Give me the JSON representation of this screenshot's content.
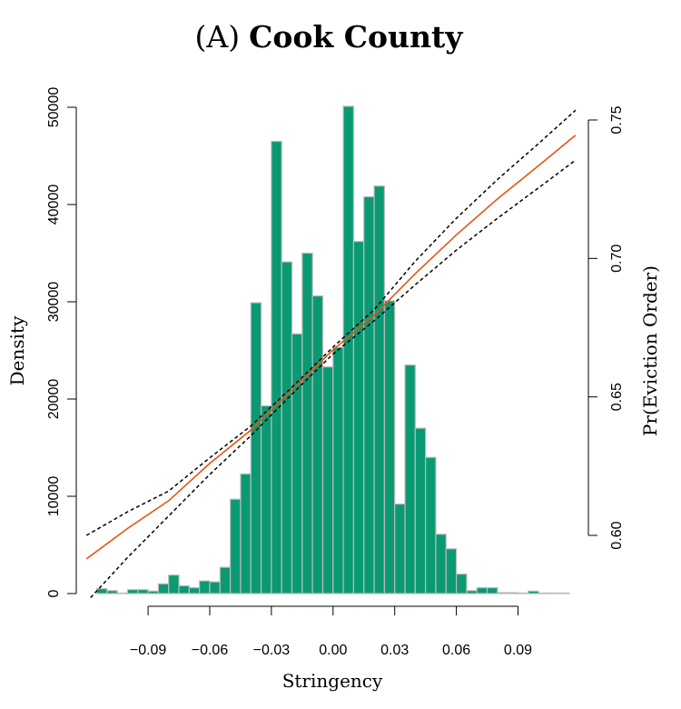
{
  "chart_data": {
    "type": "bar",
    "title": {
      "prefix": "(A)",
      "main": "Cook County"
    },
    "xlabel": "Stringency",
    "ylabel_left": "Density",
    "ylabel_right": "Pr(Eviction Order)",
    "xlim": [
      -0.1192,
      0.1185
    ],
    "ylim_left": [
      0,
      52000
    ],
    "ylim_right": [
      0.5775,
      0.7572
    ],
    "x_ticks": [
      {
        "value": -0.09,
        "label": "−0.09"
      },
      {
        "value": -0.06,
        "label": "−0.06"
      },
      {
        "value": -0.03,
        "label": "−0.03"
      },
      {
        "value": 0.0,
        "label": "0.00"
      },
      {
        "value": 0.03,
        "label": "0.03"
      },
      {
        "value": 0.06,
        "label": "0.06"
      },
      {
        "value": 0.09,
        "label": "0.09"
      }
    ],
    "y_ticks_left": [
      {
        "value": 0,
        "label": "0"
      },
      {
        "value": 10000,
        "label": "10000"
      },
      {
        "value": 20000,
        "label": "20000"
      },
      {
        "value": 30000,
        "label": "30000"
      },
      {
        "value": 40000,
        "label": "40000"
      },
      {
        "value": 50000,
        "label": "50000"
      }
    ],
    "y_ticks_right": [
      {
        "value": 0.6,
        "label": "0.60"
      },
      {
        "value": 0.65,
        "label": "0.65"
      },
      {
        "value": 0.7,
        "label": "0.70"
      },
      {
        "value": 0.75,
        "label": "0.75"
      }
    ],
    "histogram": {
      "bin_width": 0.005,
      "color": "#0a9a73",
      "edge_color": "#bbbbbb",
      "bins": [
        {
          "x0": -0.115,
          "value": 500
        },
        {
          "x0": -0.11,
          "value": 300
        },
        {
          "x0": -0.105,
          "value": 50
        },
        {
          "x0": -0.1,
          "value": 400
        },
        {
          "x0": -0.095,
          "value": 400
        },
        {
          "x0": -0.09,
          "value": 250
        },
        {
          "x0": -0.085,
          "value": 1000
        },
        {
          "x0": -0.08,
          "value": 1900
        },
        {
          "x0": -0.075,
          "value": 800
        },
        {
          "x0": -0.07,
          "value": 600
        },
        {
          "x0": -0.065,
          "value": 1300
        },
        {
          "x0": -0.06,
          "value": 1200
        },
        {
          "x0": -0.055,
          "value": 2700
        },
        {
          "x0": -0.05,
          "value": 9700
        },
        {
          "x0": -0.045,
          "value": 12300
        },
        {
          "x0": -0.04,
          "value": 29900
        },
        {
          "x0": -0.035,
          "value": 19300
        },
        {
          "x0": -0.03,
          "value": 46500
        },
        {
          "x0": -0.025,
          "value": 34100
        },
        {
          "x0": -0.02,
          "value": 26700
        },
        {
          "x0": -0.015,
          "value": 35000
        },
        {
          "x0": -0.01,
          "value": 30600
        },
        {
          "x0": -0.005,
          "value": 23300
        },
        {
          "x0": 0.0,
          "value": 25300
        },
        {
          "x0": 0.005,
          "value": 50100
        },
        {
          "x0": 0.01,
          "value": 36200
        },
        {
          "x0": 0.015,
          "value": 40800
        },
        {
          "x0": 0.02,
          "value": 41900
        },
        {
          "x0": 0.025,
          "value": 30100
        },
        {
          "x0": 0.03,
          "value": 9200
        },
        {
          "x0": 0.035,
          "value": 23500
        },
        {
          "x0": 0.04,
          "value": 17000
        },
        {
          "x0": 0.045,
          "value": 14000
        },
        {
          "x0": 0.05,
          "value": 6100
        },
        {
          "x0": 0.055,
          "value": 4600
        },
        {
          "x0": 0.06,
          "value": 2000
        },
        {
          "x0": 0.065,
          "value": 300
        },
        {
          "x0": 0.07,
          "value": 600
        },
        {
          "x0": 0.075,
          "value": 600
        },
        {
          "x0": 0.08,
          "value": 100
        },
        {
          "x0": 0.085,
          "value": 100
        },
        {
          "x0": 0.09,
          "value": 50
        },
        {
          "x0": 0.095,
          "value": 250
        },
        {
          "x0": 0.1,
          "value": 50
        },
        {
          "x0": 0.105,
          "value": 50
        },
        {
          "x0": 0.11,
          "value": 50
        }
      ]
    },
    "series": [
      {
        "role": "fit",
        "color": "#e8530e",
        "dash": false,
        "x": [
          -0.12,
          -0.1,
          -0.08,
          -0.06,
          -0.04,
          -0.02,
          0.0,
          0.02,
          0.04,
          0.06,
          0.08,
          0.1,
          0.118
        ],
        "y": [
          0.5915,
          0.6025,
          0.6125,
          0.626,
          0.638,
          0.6525,
          0.667,
          0.6795,
          0.6945,
          0.7085,
          0.7215,
          0.7335,
          0.7445
        ]
      },
      {
        "role": "ci-upper",
        "color": "#000000",
        "dash": true,
        "x": [
          -0.12,
          -0.1,
          -0.08,
          -0.06,
          -0.04,
          -0.02,
          0.0,
          0.02,
          0.04,
          0.06,
          0.08,
          0.1,
          0.118
        ],
        "y": [
          0.6,
          0.6085,
          0.616,
          0.628,
          0.6395,
          0.6535,
          0.668,
          0.6815,
          0.699,
          0.7145,
          0.7285,
          0.7415,
          0.7535
        ]
      },
      {
        "role": "ci-lower",
        "color": "#000000",
        "dash": true,
        "x": [
          -0.118,
          -0.1,
          -0.08,
          -0.06,
          -0.04,
          -0.02,
          0.0,
          0.02,
          0.04,
          0.06,
          0.08,
          0.1,
          0.118
        ],
        "y": [
          0.5775,
          0.592,
          0.607,
          0.622,
          0.636,
          0.651,
          0.6655,
          0.6775,
          0.6905,
          0.703,
          0.7145,
          0.7255,
          0.7355
        ]
      }
    ]
  }
}
